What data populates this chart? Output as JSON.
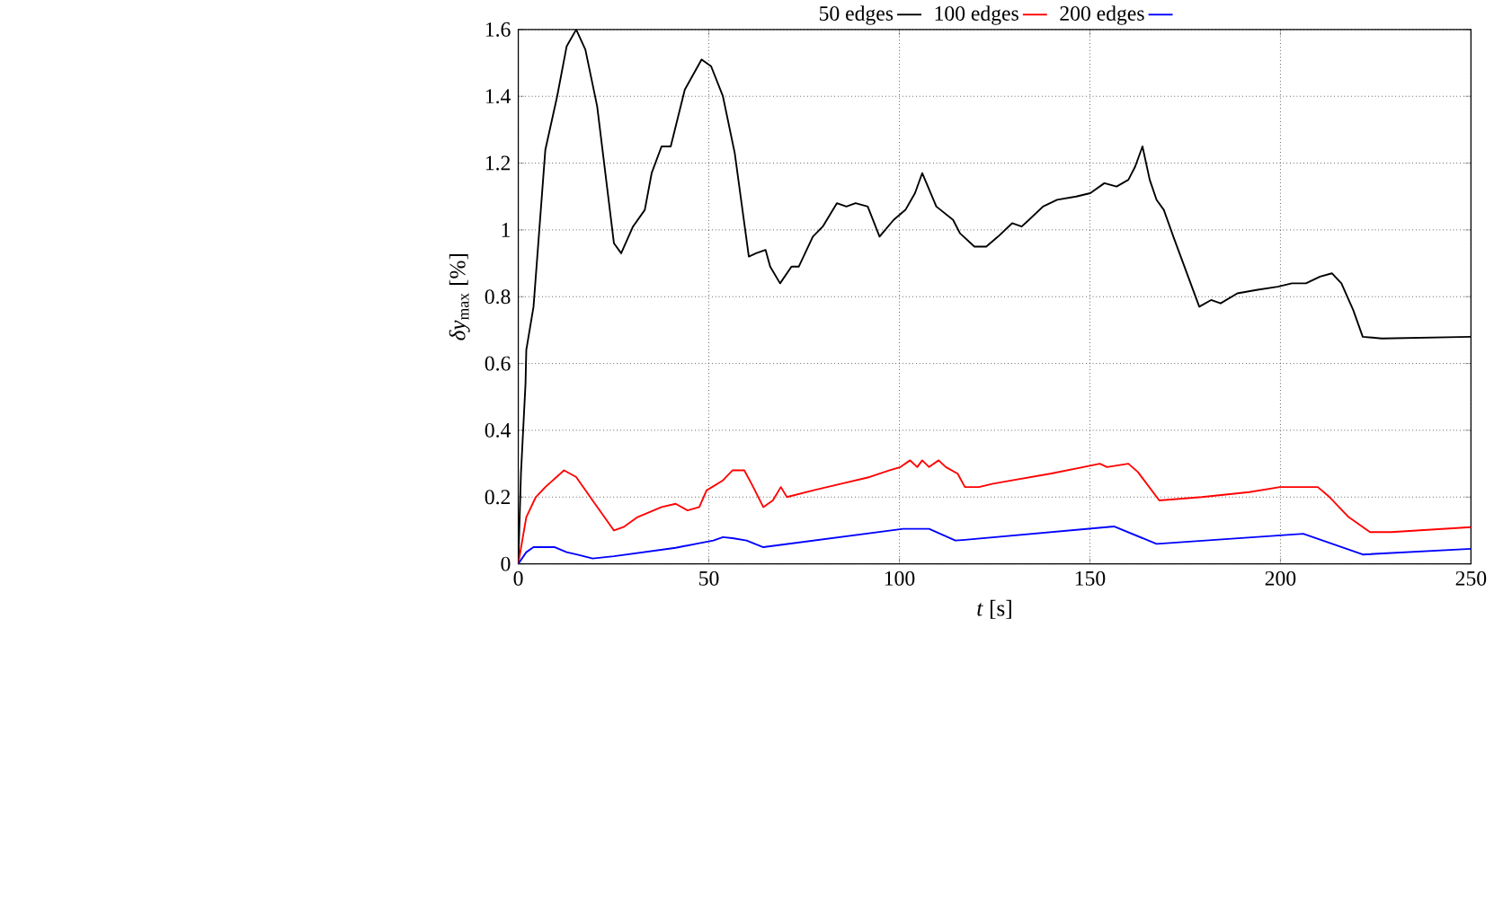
{
  "chart_data": {
    "type": "line",
    "xlabel": "*t* [s]",
    "ylabel": "*δy*$_{max}$ [%]",
    "xlim": [
      0,
      250
    ],
    "ylim": [
      0,
      1.6
    ],
    "xticks": [
      0,
      50,
      100,
      150,
      200,
      250
    ],
    "yticks": [
      0,
      0.2,
      0.4,
      0.6,
      0.8,
      1,
      1.2,
      1.4,
      1.6
    ],
    "grid": true,
    "legend": "top",
    "line_style": "solid",
    "marker": "none",
    "series": [
      {
        "name": "50 edges",
        "color": "#000000",
        "x": [
          0,
          0.7,
          1.9,
          2.1,
          4.0,
          7.1,
          10.2,
          12.7,
          15.2,
          17.6,
          20.7,
          25.1,
          27.0,
          30.1,
          33.2,
          35.0,
          37.6,
          40.0,
          43.7,
          48.1,
          50.6,
          53.7,
          56.8,
          60.5,
          62.4,
          64.9,
          66.1,
          68.7,
          71.7,
          73.6,
          77.3,
          79.9,
          83.6,
          86.1,
          88.5,
          91.7,
          94.8,
          98.5,
          101.6,
          104.1,
          106.0,
          109.7,
          114.1,
          115.9,
          119.7,
          122.8,
          125.9,
          129.6,
          132.1,
          134.0,
          137.7,
          141.4,
          146.4,
          150.1,
          153.8,
          157.0,
          160.1,
          161.9,
          163.8,
          165.7,
          167.5,
          169.4,
          171.9,
          178.7,
          181.8,
          184.3,
          188.7,
          193.7,
          199.3,
          203.0,
          206.7,
          210.4,
          213.5,
          216.0,
          219.1,
          221.6,
          226.6,
          250
        ],
        "values": [
          0,
          0.27,
          0.54,
          0.64,
          0.77,
          1.24,
          1.4,
          1.55,
          1.6,
          1.54,
          1.37,
          0.96,
          0.93,
          1.01,
          1.06,
          1.17,
          1.25,
          1.25,
          1.42,
          1.51,
          1.49,
          1.4,
          1.23,
          0.92,
          0.93,
          0.94,
          0.89,
          0.84,
          0.89,
          0.89,
          0.98,
          1.01,
          1.08,
          1.07,
          1.08,
          1.07,
          0.98,
          1.03,
          1.06,
          1.11,
          1.17,
          1.07,
          1.03,
          0.99,
          0.95,
          0.95,
          0.98,
          1.02,
          1.01,
          1.03,
          1.07,
          1.09,
          1.1,
          1.11,
          1.14,
          1.13,
          1.15,
          1.19,
          1.25,
          1.15,
          1.09,
          1.06,
          0.98,
          0.77,
          0.79,
          0.78,
          0.81,
          0.82,
          0.83,
          0.84,
          0.84,
          0.86,
          0.87,
          0.84,
          0.76,
          0.68,
          0.675,
          0.68
        ]
      },
      {
        "name": "100 edges",
        "color": "#ff0000",
        "x": [
          0,
          2.1,
          4.6,
          7.1,
          12.0,
          15.2,
          19.5,
          25.1,
          27.6,
          31.3,
          37.6,
          41.3,
          44.4,
          47.5,
          49.4,
          53.7,
          56.2,
          59.3,
          61.2,
          64.3,
          66.8,
          68.9,
          70.5,
          77.3,
          84.8,
          92.2,
          97.3,
          100.3,
          102.8,
          104.7,
          106.0,
          107.8,
          110.3,
          112.2,
          115.3,
          117.2,
          120.9,
          124.6,
          129.6,
          139.6,
          148.3,
          152.6,
          154.5,
          160.1,
          162.6,
          168.2,
          179.4,
          191.8,
          199.9,
          209.8,
          212.9,
          217.9,
          223.5,
          229.1,
          250
        ],
        "values": [
          0,
          0.14,
          0.2,
          0.23,
          0.28,
          0.26,
          0.19,
          0.1,
          0.11,
          0.14,
          0.17,
          0.18,
          0.16,
          0.17,
          0.22,
          0.25,
          0.28,
          0.28,
          0.24,
          0.17,
          0.19,
          0.23,
          0.2,
          0.22,
          0.24,
          0.26,
          0.28,
          0.29,
          0.31,
          0.29,
          0.31,
          0.29,
          0.31,
          0.29,
          0.27,
          0.23,
          0.23,
          0.24,
          0.25,
          0.27,
          0.29,
          0.3,
          0.29,
          0.3,
          0.275,
          0.19,
          0.2,
          0.215,
          0.23,
          0.23,
          0.2,
          0.14,
          0.095,
          0.095,
          0.11
        ]
      },
      {
        "name": "200 edges",
        "color": "#0000ff",
        "x": [
          0,
          2.1,
          4.0,
          9.6,
          12.7,
          15.8,
          19.5,
          25.1,
          41.3,
          47.5,
          51.2,
          53.7,
          56.2,
          59.9,
          64.3,
          101.0,
          107.8,
          114.7,
          117.2,
          156.3,
          167.5,
          206.0,
          221.6,
          250
        ],
        "values": [
          0,
          0.035,
          0.05,
          0.05,
          0.035,
          0.027,
          0.016,
          0.023,
          0.048,
          0.062,
          0.07,
          0.08,
          0.077,
          0.07,
          0.05,
          0.105,
          0.105,
          0.07,
          0.072,
          0.112,
          0.06,
          0.09,
          0.028,
          0.045
        ]
      }
    ]
  }
}
